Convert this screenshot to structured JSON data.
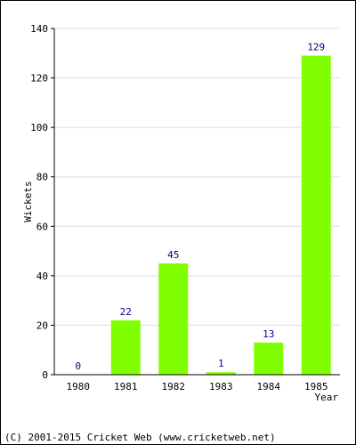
{
  "chart_data": {
    "type": "bar",
    "categories": [
      "1980",
      "1981",
      "1982",
      "1983",
      "1984",
      "1985"
    ],
    "values": [
      0,
      22,
      45,
      1,
      13,
      129
    ],
    "data_labels": [
      "0",
      "22",
      "45",
      "1",
      "13",
      "129"
    ],
    "title": "",
    "xlabel": "Year",
    "ylabel": "Wickets",
    "ylim": [
      0,
      140
    ],
    "yticks": [
      0,
      20,
      40,
      60,
      80,
      100,
      120,
      140
    ],
    "ytick_labels": [
      "0",
      "20",
      "40",
      "60",
      "80",
      "100",
      "120",
      "140"
    ],
    "grid": true,
    "bar_color": "#80ff00",
    "label_color": "#000080"
  },
  "footer": {
    "credit": "(C) 2001-2015 Cricket Web (www.cricketweb.net)"
  }
}
